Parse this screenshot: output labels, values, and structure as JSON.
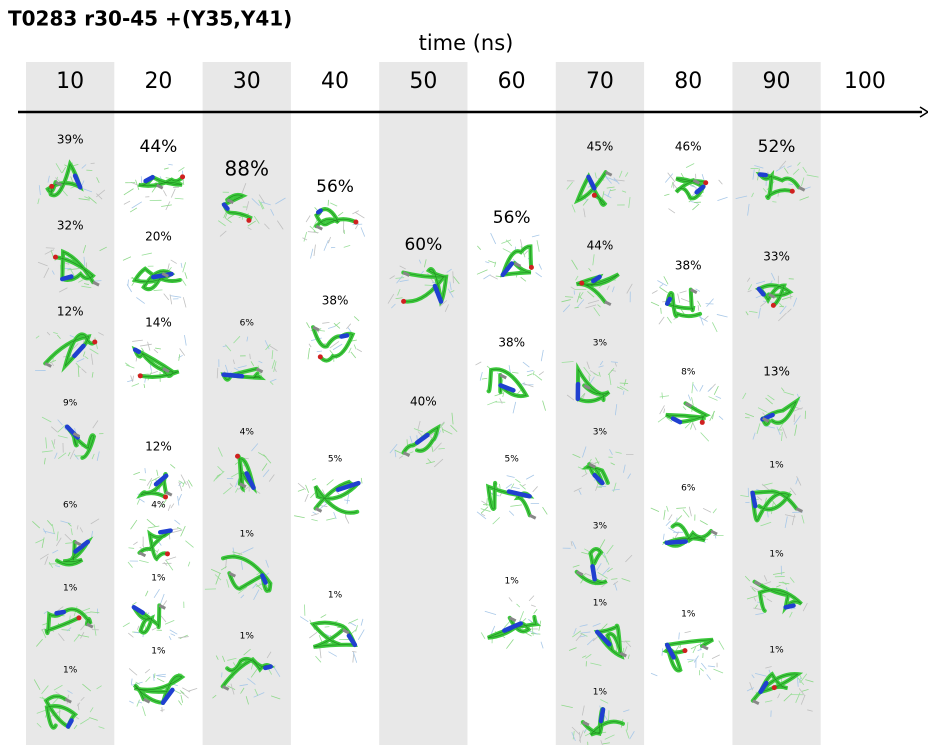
{
  "title": "T0283 r30-45 +(Y35,Y41)",
  "axis_label": "time (ns)",
  "columns": [
    {
      "time": 10,
      "clusters": [
        "39%",
        "32%",
        "12%",
        "9%",
        "6%",
        "1%",
        "1%"
      ]
    },
    {
      "time": 20,
      "clusters": [
        "44%",
        "20%",
        "14%",
        "12%",
        "4%",
        "1%",
        "1%"
      ]
    },
    {
      "time": 30,
      "clusters": [
        "88%",
        "6%",
        "4%",
        "1%",
        "1%"
      ]
    },
    {
      "time": 40,
      "clusters": [
        "56%",
        "38%",
        "5%",
        "1%"
      ]
    },
    {
      "time": 50,
      "clusters": [
        "60%",
        "40%"
      ]
    },
    {
      "time": 60,
      "clusters": [
        "56%",
        "38%",
        "5%",
        "1%"
      ]
    },
    {
      "time": 70,
      "clusters": [
        "45%",
        "44%",
        "3%",
        "3%",
        "3%",
        "1%",
        "1%"
      ]
    },
    {
      "time": 80,
      "clusters": [
        "46%",
        "38%",
        "8%",
        "6%",
        "1%"
      ]
    },
    {
      "time": 90,
      "clusters": [
        "52%",
        "33%",
        "13%",
        "1%",
        "1%",
        "1%"
      ]
    },
    {
      "time": 100,
      "clusters": []
    }
  ]
}
